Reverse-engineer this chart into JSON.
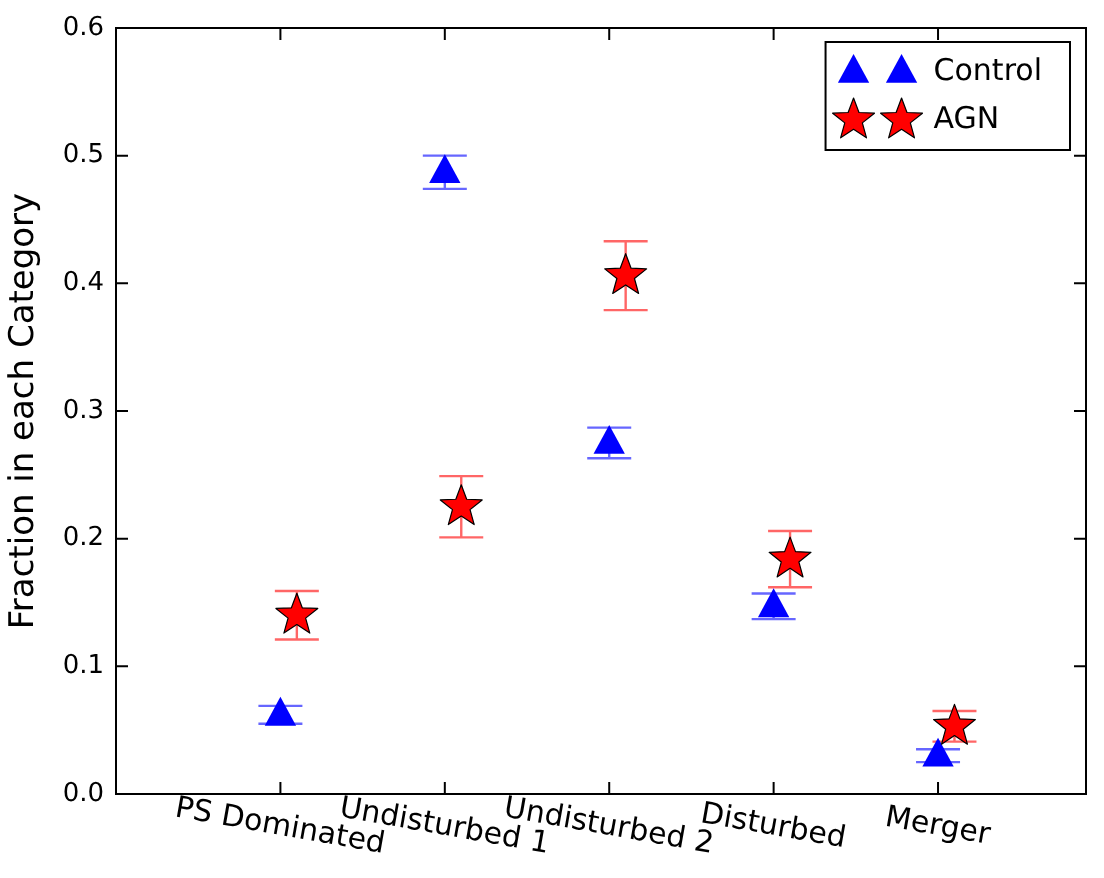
{
  "chart_data": {
    "type": "scatter",
    "ylabel": "Fraction in each Category",
    "categories": [
      "PS Dominated",
      "Undisturbed 1",
      "Undisturbed 2",
      "Disturbed",
      "Merger"
    ],
    "ylim": [
      0,
      0.6
    ],
    "yticks": [
      {
        "value": 0,
        "label": "0.0"
      },
      {
        "value": 0.1,
        "label": "0.1"
      },
      {
        "value": 0.2,
        "label": "0.2"
      },
      {
        "value": 0.3,
        "label": "0.3"
      },
      {
        "value": 0.4,
        "label": "0.4"
      },
      {
        "value": 0.5,
        "label": "0.5"
      },
      {
        "value": 0.6,
        "label": "0.6"
      }
    ],
    "series": [
      {
        "name": "Control",
        "color": "#0000ff",
        "marker": "triangle",
        "values": [
          0.062,
          0.487,
          0.275,
          0.147,
          0.03
        ],
        "errors": [
          0.007,
          0.013,
          0.012,
          0.01,
          0.005
        ]
      },
      {
        "name": "AGN",
        "color": "#ff0000",
        "marker": "star",
        "values": [
          0.14,
          0.225,
          0.406,
          0.184,
          0.053
        ],
        "errors": [
          0.019,
          0.024,
          0.027,
          0.022,
          0.012
        ]
      }
    ],
    "legend": "top right",
    "grid": false
  }
}
